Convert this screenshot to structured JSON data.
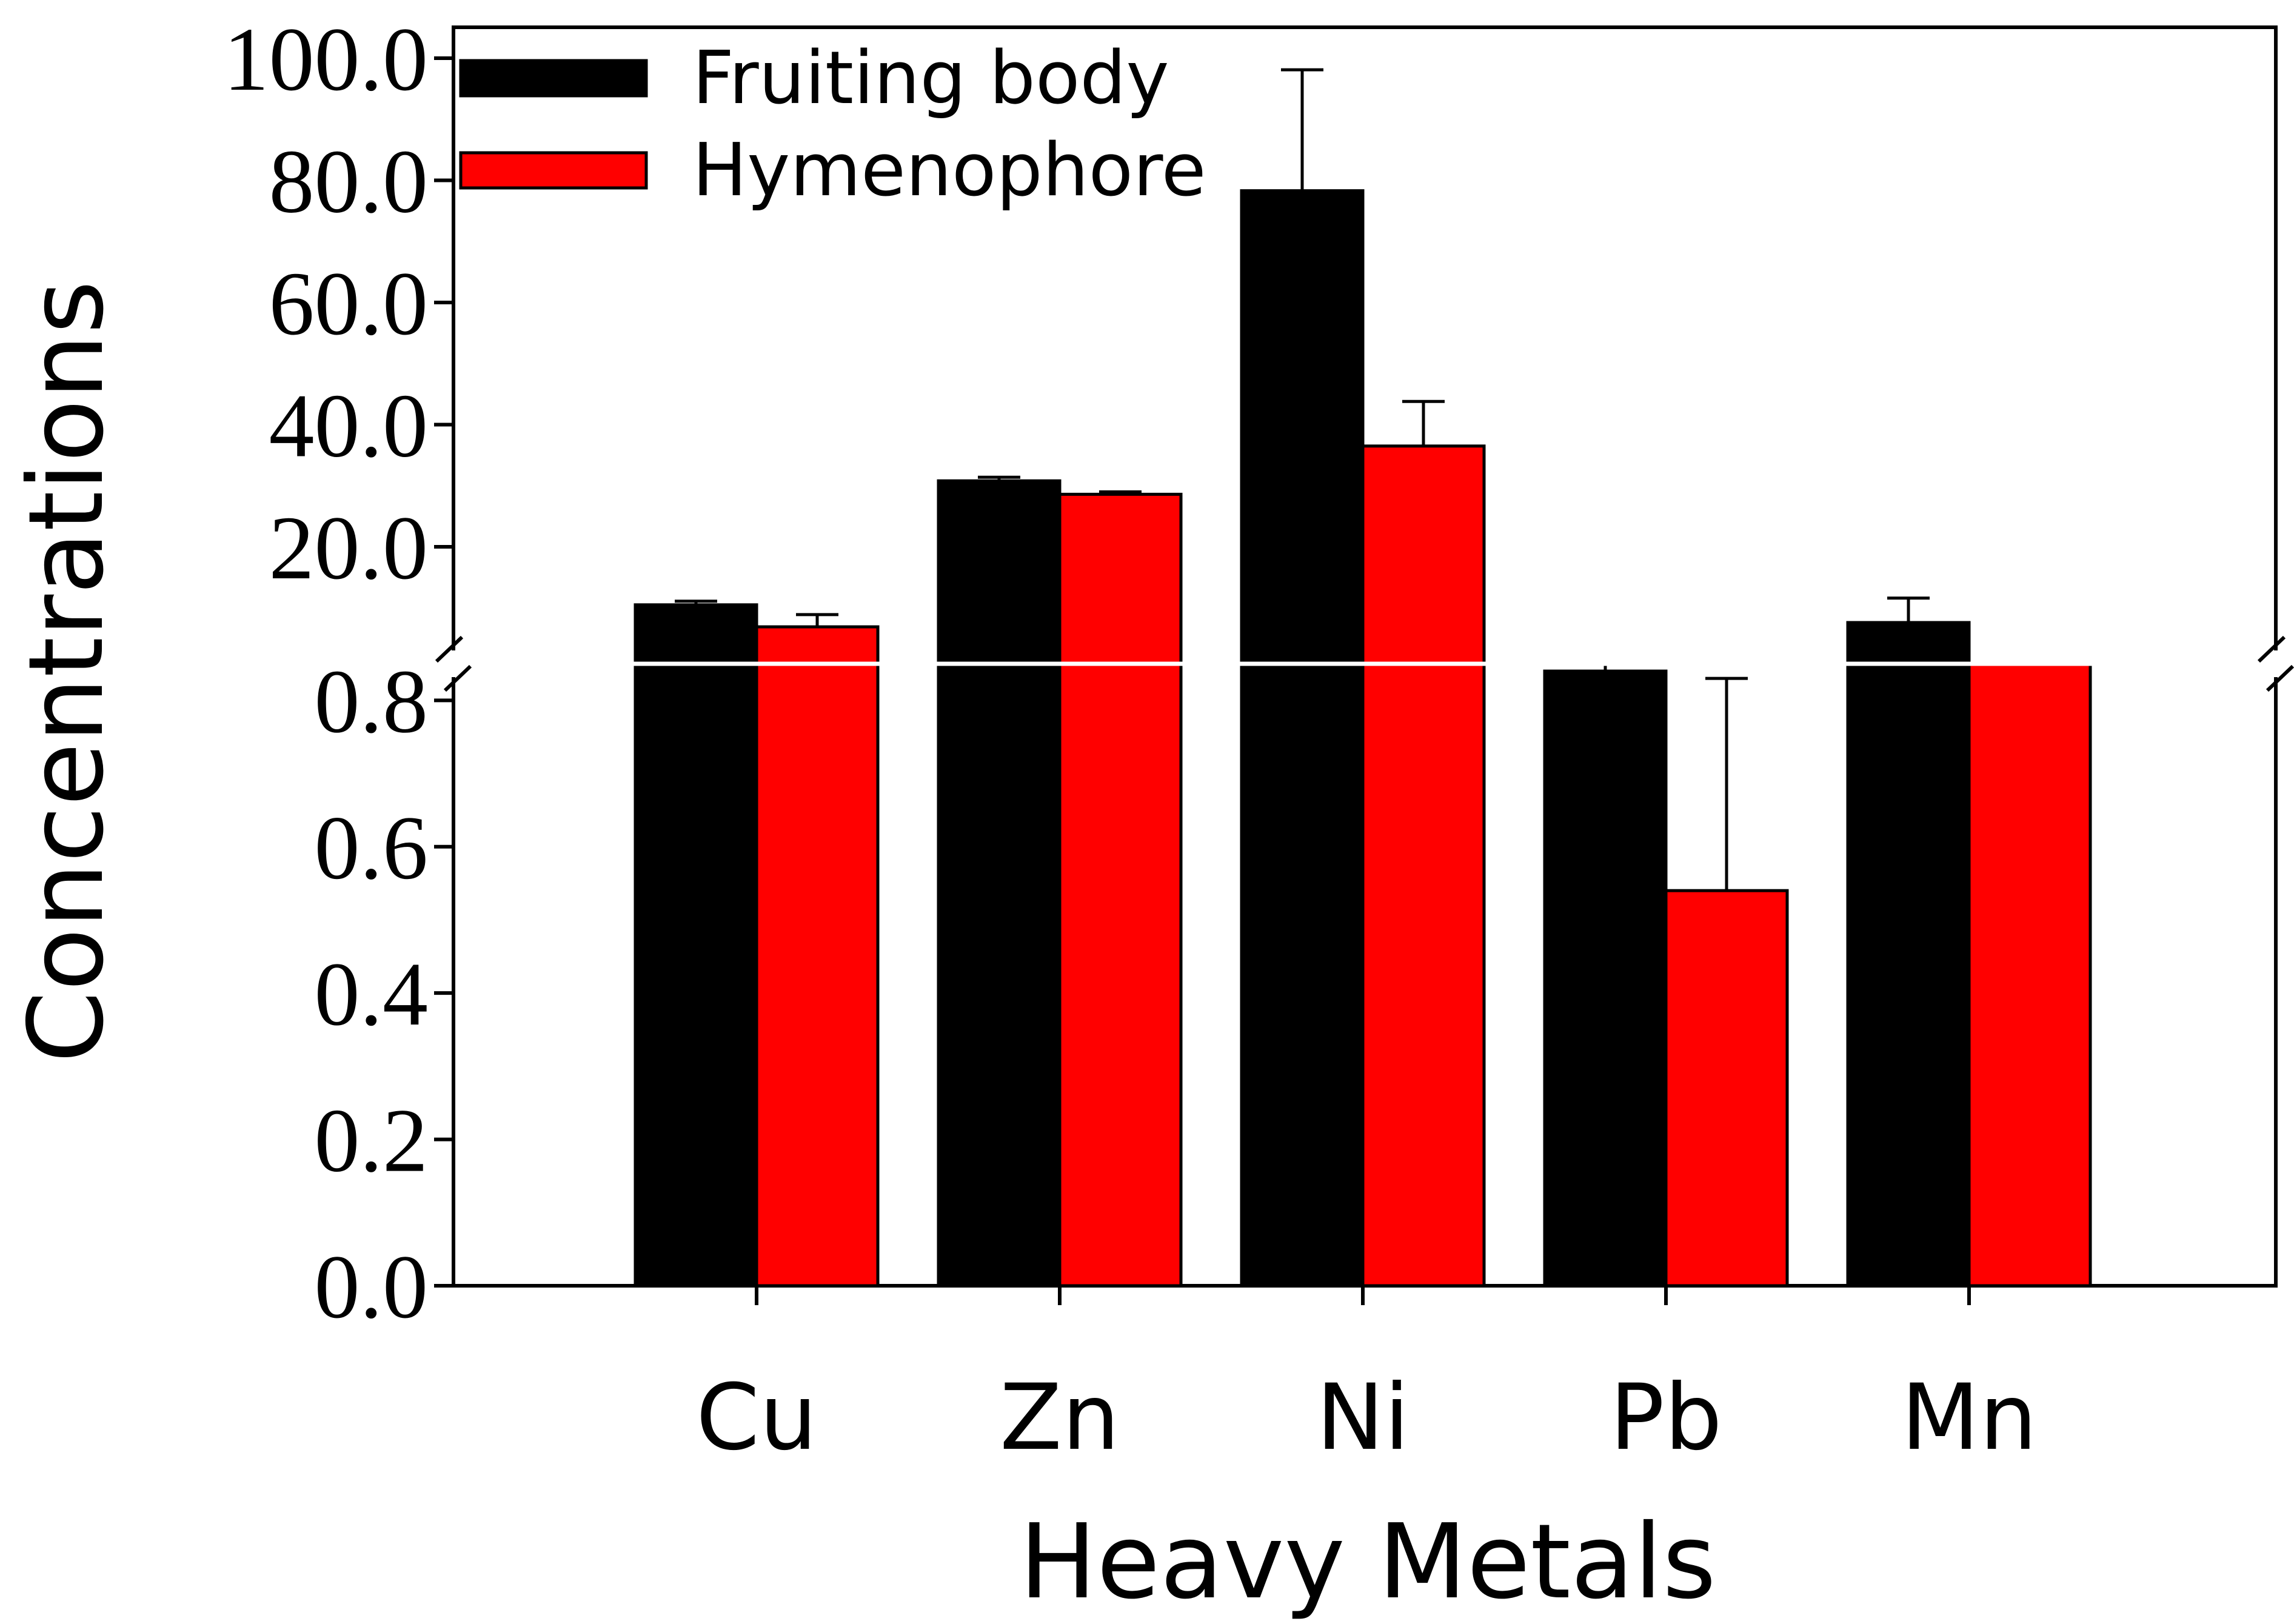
{
  "chart_data": {
    "type": "bar",
    "title": "",
    "xlabel": "Heavy Metals",
    "ylabel": "Concentrations",
    "categories": [
      "Cu",
      "Zn",
      "Ni",
      "Pb",
      "Mn"
    ],
    "series": [
      {
        "name": "Fruiting body",
        "color": "#000000",
        "values": [
          10.5,
          30.8,
          78.3,
          0.84,
          7.6
        ],
        "errors": [
          0.6,
          0.6,
          19.8,
          0.01,
          4.0
        ]
      },
      {
        "name": "Hymenophore",
        "color": "#ff0000",
        "values": [
          6.9,
          28.6,
          36.5,
          0.54,
          0.85
        ],
        "errors": [
          2.0,
          0.4,
          7.3,
          0.29,
          0.01
        ]
      }
    ],
    "y_axis_lower": {
      "ylim": [
        0.0,
        0.85
      ],
      "ticks": [
        "0.0",
        "0.2",
        "0.4",
        "0.6",
        "0.8"
      ]
    },
    "y_axis_upper": {
      "ylim": [
        0.85,
        100.0
      ],
      "ticks": [
        "20.0",
        "40.0",
        "60.0",
        "80.0",
        "100.0"
      ]
    },
    "axis_break": true,
    "legend_position": "top-left",
    "grid": false
  }
}
